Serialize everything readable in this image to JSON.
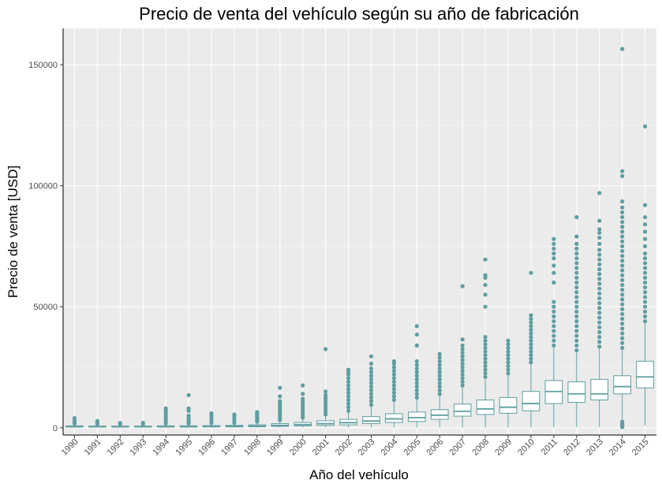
{
  "chart_data": {
    "type": "boxplot",
    "title": "Precio de venta del vehículo según su año de fabricación",
    "xlabel": "Año del vehículo",
    "ylabel": "Precio de venta [USD]",
    "ylim": [
      -3000,
      165000
    ],
    "y_ticks": [
      0,
      50000,
      100000,
      150000
    ],
    "y_tick_labels": [
      "0",
      "50000",
      "100000",
      "150000"
    ],
    "grid": true,
    "color": "#5F9EA0",
    "panel_background": "#EBEBEB",
    "categories": [
      "1990",
      "1991",
      "1992",
      "1993",
      "1994",
      "1995",
      "1996",
      "1997",
      "1998",
      "1999",
      "2000",
      "2001",
      "2002",
      "2003",
      "2004",
      "2005",
      "2006",
      "2007",
      "2008",
      "2009",
      "2010",
      "2011",
      "2012",
      "2013",
      "2014",
      "2015"
    ],
    "boxes": [
      {
        "q1": 300,
        "median": 500,
        "q3": 800,
        "whisker_low": 100,
        "whisker_high": 1200,
        "outliers": [
          1800,
          2500,
          3200,
          4000
        ]
      },
      {
        "q1": 300,
        "median": 450,
        "q3": 700,
        "whisker_low": 100,
        "whisker_high": 1000,
        "outliers": [
          1500,
          2200,
          2800
        ]
      },
      {
        "q1": 300,
        "median": 450,
        "q3": 700,
        "whisker_low": 100,
        "whisker_high": 1000,
        "outliers": [
          1500,
          2000
        ]
      },
      {
        "q1": 300,
        "median": 450,
        "q3": 700,
        "whisker_low": 100,
        "whisker_high": 1100,
        "outliers": [
          1500,
          2000
        ]
      },
      {
        "q1": 300,
        "median": 500,
        "q3": 800,
        "whisker_low": 100,
        "whisker_high": 1300,
        "outliers": [
          1800,
          2500,
          3500,
          4500,
          5500,
          6500,
          7500,
          8000
        ]
      },
      {
        "q1": 300,
        "median": 500,
        "q3": 800,
        "whisker_low": 100,
        "whisker_high": 1300,
        "outliers": [
          1800,
          2500,
          3200,
          4000,
          5000,
          7000,
          8000,
          13500
        ]
      },
      {
        "q1": 350,
        "median": 550,
        "q3": 900,
        "whisker_low": 100,
        "whisker_high": 1500,
        "outliers": [
          2000,
          3000,
          4000,
          5000,
          6000
        ]
      },
      {
        "q1": 350,
        "median": 600,
        "q3": 1000,
        "whisker_low": 100,
        "whisker_high": 1600,
        "outliers": [
          2000,
          3000,
          4000,
          5000,
          5500
        ]
      },
      {
        "q1": 400,
        "median": 700,
        "q3": 1200,
        "whisker_low": 100,
        "whisker_high": 2000,
        "outliers": [
          2500,
          3000,
          3500,
          4000,
          4500,
          5000,
          5500,
          6000,
          6500
        ]
      },
      {
        "q1": 600,
        "median": 1000,
        "q3": 1700,
        "whisker_low": 100,
        "whisker_high": 2800,
        "outliers": [
          3200,
          4000,
          5000,
          6000,
          7000,
          8000,
          9000,
          10000,
          11000,
          13000,
          16500
        ]
      },
      {
        "q1": 800,
        "median": 1300,
        "q3": 2200,
        "whisker_low": 100,
        "whisker_high": 3800,
        "outliers": [
          4200,
          5000,
          6000,
          7000,
          8000,
          9000,
          10000,
          11000,
          12000,
          14000,
          17500
        ]
      },
      {
        "q1": 1000,
        "median": 1700,
        "q3": 2900,
        "whisker_low": 100,
        "whisker_high": 5000,
        "outliers": [
          5500,
          6500,
          7500,
          8500,
          9500,
          10500,
          11500,
          12500,
          13500,
          15000,
          32500
        ]
      },
      {
        "q1": 1200,
        "median": 2100,
        "q3": 3500,
        "whisker_low": 100,
        "whisker_high": 6500,
        "outliers": [
          7000,
          8500,
          10000,
          11500,
          13000,
          14500,
          16000,
          17500,
          19000,
          20500,
          22000,
          23000,
          24000
        ]
      },
      {
        "q1": 1700,
        "median": 2800,
        "q3": 4600,
        "whisker_low": 100,
        "whisker_high": 8800,
        "outliers": [
          9500,
          11000,
          12500,
          14000,
          15500,
          17000,
          18500,
          20000,
          21500,
          23000,
          24500,
          26500,
          29500
        ]
      },
      {
        "q1": 2200,
        "median": 3700,
        "q3": 5800,
        "whisker_low": 100,
        "whisker_high": 10800,
        "outliers": [
          11500,
          13000,
          14500,
          16000,
          17500,
          19000,
          20500,
          22000,
          23500,
          25000,
          26500,
          27500
        ]
      },
      {
        "q1": 2600,
        "median": 4200,
        "q3": 6500,
        "whisker_low": 100,
        "whisker_high": 12000,
        "outliers": [
          12500,
          14000,
          15500,
          17000,
          18500,
          20000,
          21500,
          23000,
          24500,
          26000,
          27500,
          34000,
          38500,
          42000
        ]
      },
      {
        "q1": 3500,
        "median": 5200,
        "q3": 7500,
        "whisker_low": 100,
        "whisker_high": 13500,
        "outliers": [
          14000,
          15500,
          17000,
          18500,
          20000,
          21500,
          23000,
          24500,
          26000,
          27500,
          29000,
          30500
        ]
      },
      {
        "q1": 4800,
        "median": 6800,
        "q3": 9800,
        "whisker_low": 100,
        "whisker_high": 17000,
        "outliers": [
          17500,
          19000,
          20500,
          22000,
          23500,
          25000,
          26500,
          28000,
          29500,
          31000,
          32500,
          34000,
          36500,
          58500
        ]
      },
      {
        "q1": 5500,
        "median": 7800,
        "q3": 11500,
        "whisker_low": 100,
        "whisker_high": 20000,
        "outliers": [
          21000,
          22500,
          24000,
          25500,
          27000,
          28500,
          30000,
          31500,
          33000,
          34500,
          36000,
          37500,
          50000,
          55000,
          59000,
          62000,
          63000,
          69500
        ]
      },
      {
        "q1": 6000,
        "median": 8500,
        "q3": 12500,
        "whisker_low": 100,
        "whisker_high": 22000,
        "outliers": [
          22500,
          24000,
          25500,
          27000,
          28500,
          30000,
          31500,
          33000,
          34500,
          36000
        ]
      },
      {
        "q1": 7000,
        "median": 10000,
        "q3": 15000,
        "whisker_low": 100,
        "whisker_high": 26000,
        "outliers": [
          27000,
          28500,
          30000,
          31500,
          33000,
          34500,
          36000,
          37500,
          39000,
          40500,
          42000,
          43500,
          45000,
          46500,
          64000
        ]
      },
      {
        "q1": 10000,
        "median": 15000,
        "q3": 19500,
        "whisker_low": 200,
        "whisker_high": 33500,
        "outliers": [
          34000,
          36000,
          38000,
          40000,
          42000,
          44000,
          46000,
          48000,
          50000,
          52000,
          60000,
          64000,
          67000,
          70000,
          72000,
          74000,
          76000,
          78000
        ]
      },
      {
        "q1": 10500,
        "median": 14000,
        "q3": 19000,
        "whisker_low": 200,
        "whisker_high": 31500,
        "outliers": [
          32000,
          34000,
          36000,
          38000,
          40000,
          42000,
          44000,
          46000,
          48000,
          50000,
          52000,
          54000,
          56000,
          58000,
          60000,
          62000,
          64000,
          66000,
          68000,
          70000,
          72000,
          74000,
          76000,
          79000,
          87000
        ]
      },
      {
        "q1": 11500,
        "median": 14000,
        "q3": 20000,
        "whisker_low": 200,
        "whisker_high": 33000,
        "outliers": [
          33500,
          35500,
          37500,
          39500,
          41500,
          43500,
          45500,
          47500,
          49500,
          51500,
          53500,
          55500,
          57500,
          59500,
          61500,
          63500,
          65500,
          67500,
          69500,
          71500,
          73500,
          76000,
          78500,
          80500,
          82000,
          85500,
          97000
        ]
      },
      {
        "q1": 14000,
        "median": 17000,
        "q3": 21500,
        "whisker_low": 200,
        "whisker_high": 32500,
        "outliers": [
          300,
          600,
          900,
          1300,
          1800,
          2500,
          33000,
          35000,
          37000,
          39000,
          41000,
          43000,
          45000,
          47000,
          49000,
          51000,
          53000,
          55000,
          57000,
          59000,
          61000,
          63000,
          65000,
          67000,
          69000,
          71000,
          73000,
          75000,
          77000,
          79000,
          81000,
          83000,
          85000,
          87000,
          89000,
          91000,
          93500,
          104000,
          106000,
          156500
        ]
      },
      {
        "q1": 16500,
        "median": 21000,
        "q3": 27500,
        "whisker_low": 1000,
        "whisker_high": 43500,
        "outliers": [
          44000,
          46000,
          48000,
          50000,
          52000,
          54000,
          56000,
          58000,
          60000,
          62000,
          64000,
          66000,
          68000,
          70000,
          72000,
          75000,
          78000,
          81000,
          84000,
          87000,
          92000,
          124500
        ]
      }
    ]
  }
}
